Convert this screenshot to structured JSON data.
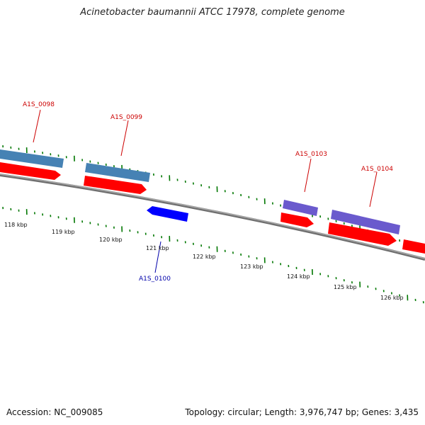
{
  "title": "Acinetobacter baumannii ATCC 17978, complete genome",
  "footer": {
    "accession": "Accession: NC_009085",
    "summary": "Topology: circular; Length: 3,976,747 bp; Genes: 3,435"
  },
  "colors": {
    "backbone": "#888888",
    "forward_cds": "#ff0000",
    "reverse_cds": "#0000ff",
    "feature_steel": "#4682b4",
    "feature_slate": "#6a5acd",
    "tick": "#007700",
    "label_forward": "#cc0000",
    "label_reverse": "#0000aa"
  },
  "gene_labels": [
    "A1S_0098",
    "A1S_0099",
    "A1S_0100",
    "A1S_0103",
    "A1S_0104"
  ],
  "scale_labels": [
    "118 kbp",
    "119 kbp",
    "120 kbp",
    "121 kbp",
    "122 kbp",
    "123 kbp",
    "124 kbp",
    "125 kbp",
    "126 kbp"
  ]
}
